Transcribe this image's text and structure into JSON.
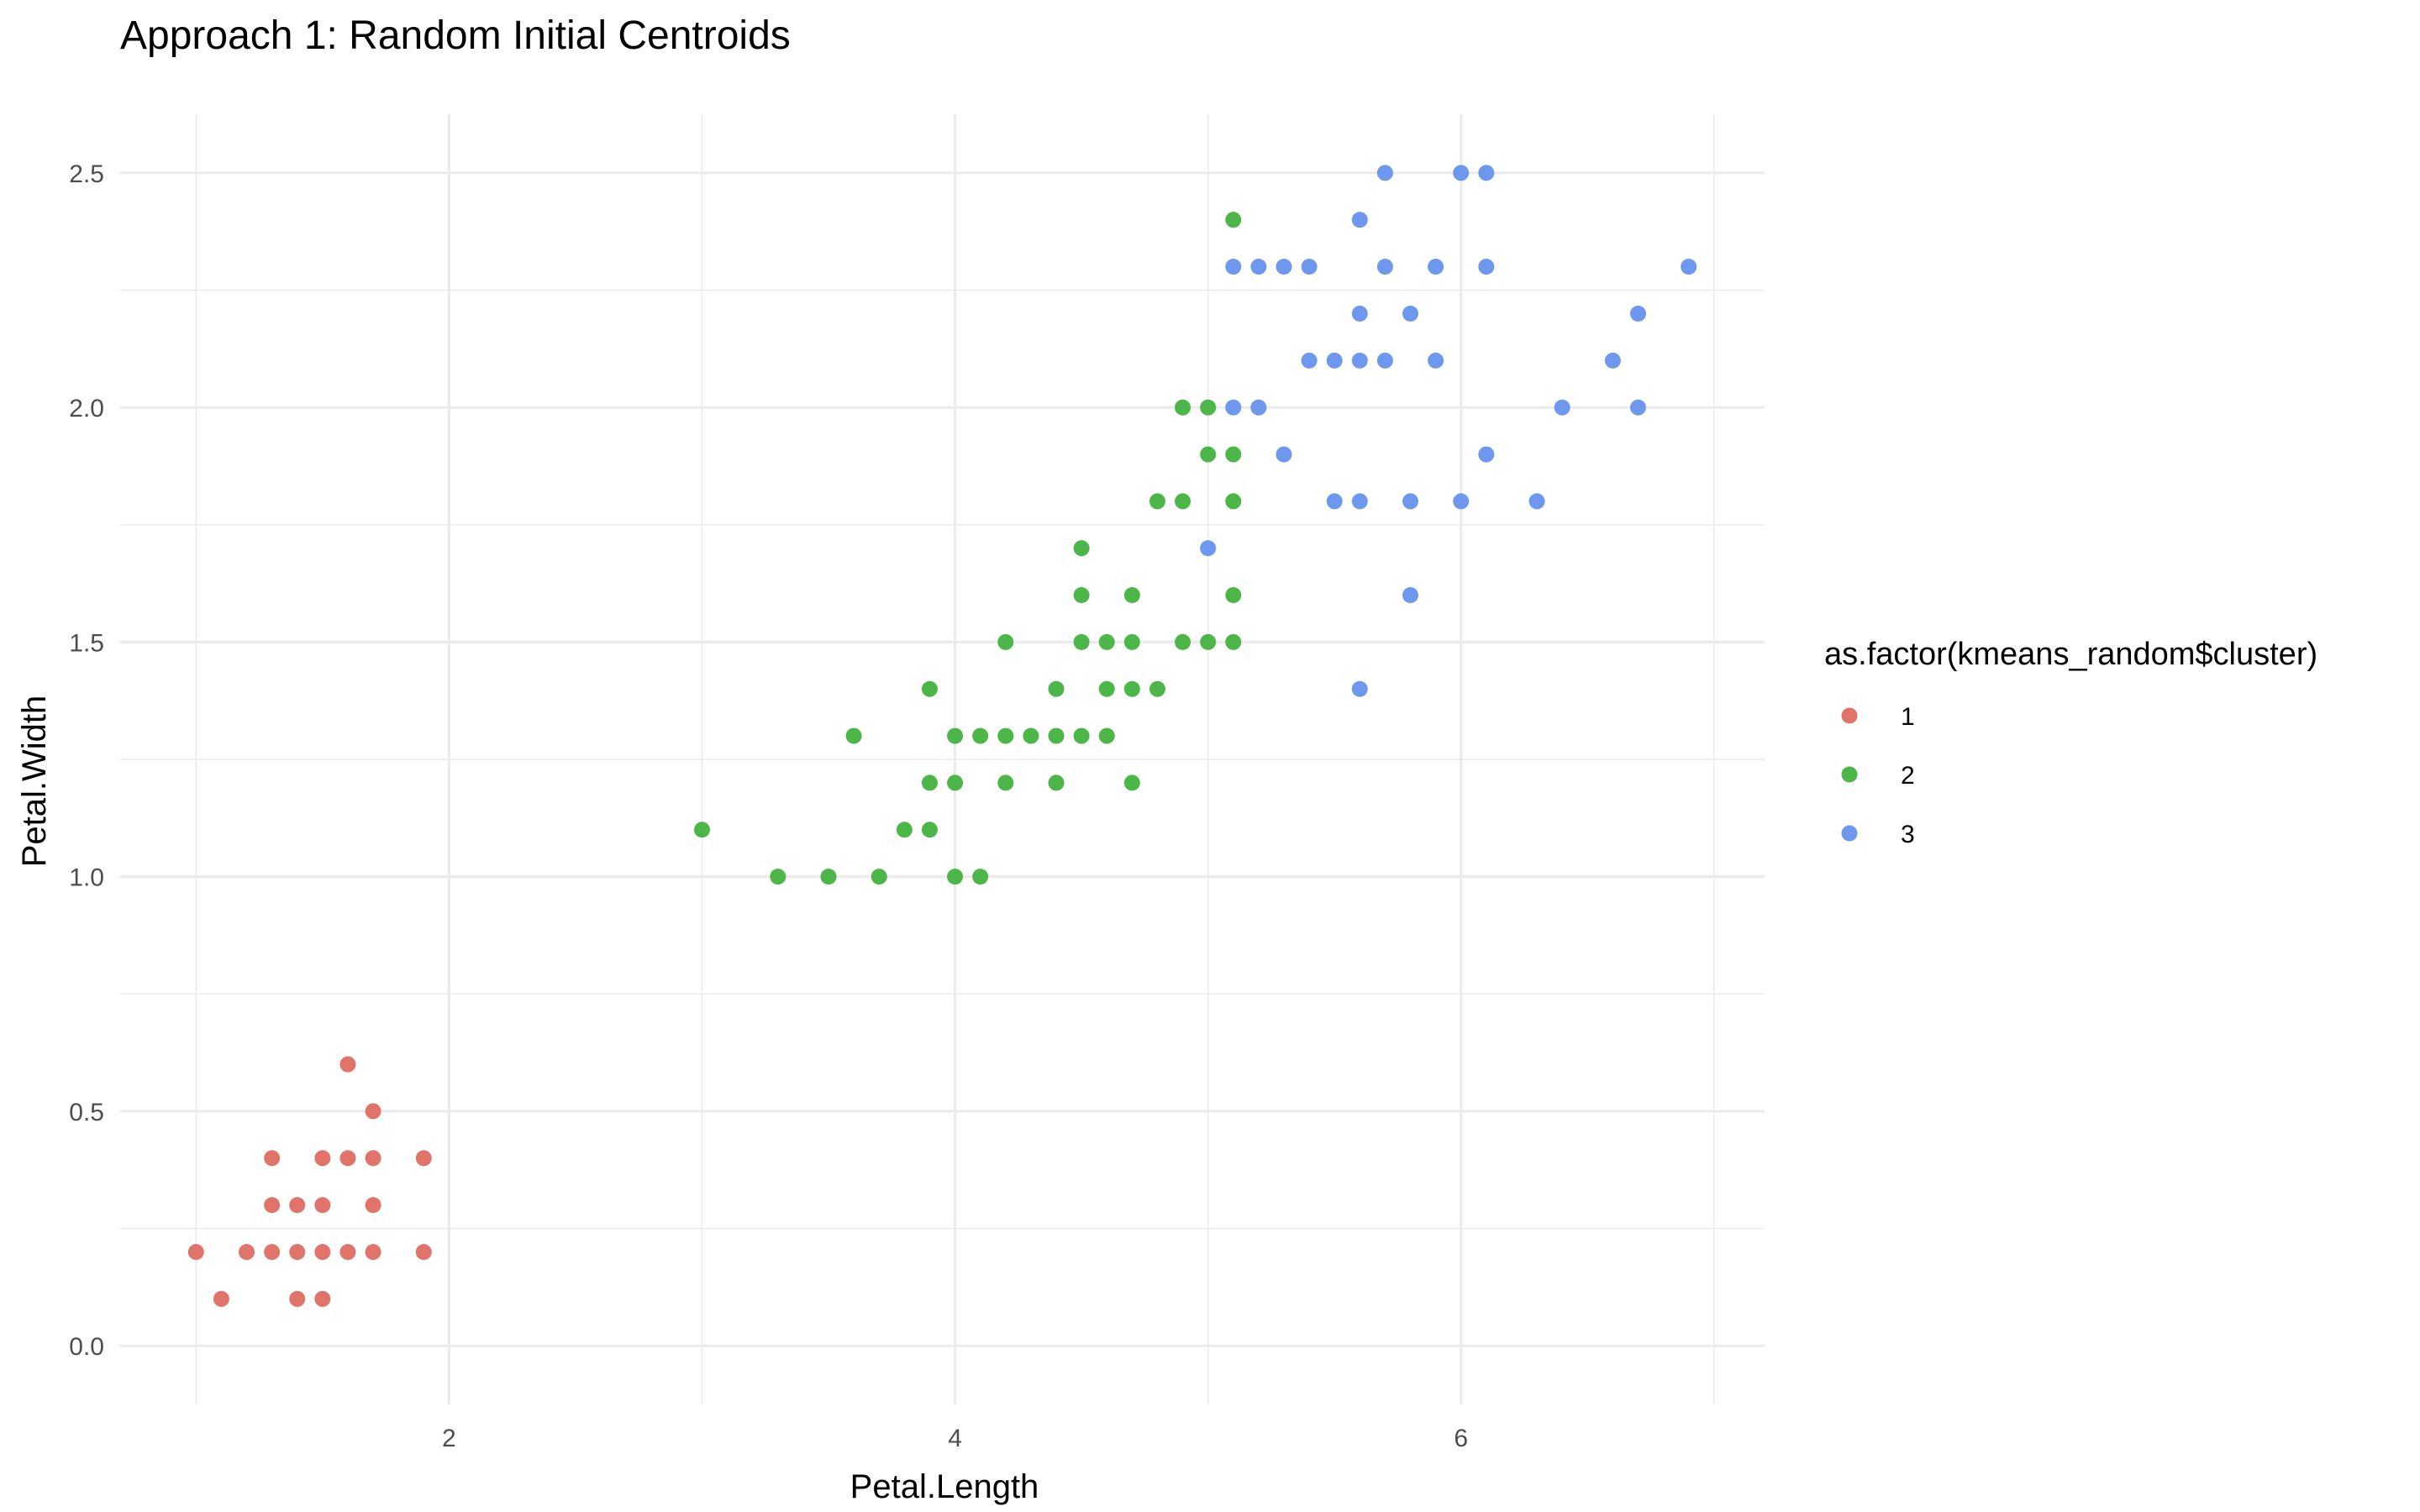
{
  "chart_data": {
    "type": "scatter",
    "title": "Approach 1: Random Initial Centroids",
    "xlabel": "Petal.Length",
    "ylabel": "Petal.Width",
    "xlim": [
      0.7,
      7.2
    ],
    "ylim": [
      0.0,
      2.5
    ],
    "x_ticks": [
      2,
      4,
      6
    ],
    "x_minor_ticks": [
      1,
      3,
      5,
      7
    ],
    "y_ticks": [
      0.0,
      0.5,
      1.0,
      1.5,
      2.0,
      2.5
    ],
    "y_minor_ticks": [
      0.25,
      0.75,
      1.25,
      1.75,
      2.25
    ],
    "grid": true,
    "legend": {
      "title": "as.factor(kmeans_random$cluster)",
      "position": "right"
    },
    "series": [
      {
        "name": "1",
        "color": "#E0746B",
        "points": [
          [
            1.0,
            0.2
          ],
          [
            1.1,
            0.1
          ],
          [
            1.2,
            0.2
          ],
          [
            1.3,
            0.2
          ],
          [
            1.3,
            0.3
          ],
          [
            1.3,
            0.4
          ],
          [
            1.4,
            0.1
          ],
          [
            1.4,
            0.2
          ],
          [
            1.4,
            0.3
          ],
          [
            1.5,
            0.1
          ],
          [
            1.5,
            0.2
          ],
          [
            1.5,
            0.3
          ],
          [
            1.5,
            0.4
          ],
          [
            1.6,
            0.2
          ],
          [
            1.6,
            0.4
          ],
          [
            1.6,
            0.6
          ],
          [
            1.7,
            0.2
          ],
          [
            1.7,
            0.3
          ],
          [
            1.7,
            0.4
          ],
          [
            1.7,
            0.5
          ],
          [
            1.9,
            0.2
          ],
          [
            1.9,
            0.4
          ]
        ]
      },
      {
        "name": "2",
        "color": "#4CB648",
        "points": [
          [
            3.0,
            1.1
          ],
          [
            3.3,
            1.0
          ],
          [
            3.5,
            1.0
          ],
          [
            3.6,
            1.3
          ],
          [
            3.7,
            1.0
          ],
          [
            3.8,
            1.1
          ],
          [
            3.9,
            1.1
          ],
          [
            3.9,
            1.2
          ],
          [
            3.9,
            1.4
          ],
          [
            4.0,
            1.0
          ],
          [
            4.0,
            1.2
          ],
          [
            4.0,
            1.3
          ],
          [
            4.1,
            1.0
          ],
          [
            4.1,
            1.3
          ],
          [
            4.2,
            1.2
          ],
          [
            4.2,
            1.3
          ],
          [
            4.2,
            1.5
          ],
          [
            4.3,
            1.3
          ],
          [
            4.4,
            1.2
          ],
          [
            4.4,
            1.3
          ],
          [
            4.4,
            1.4
          ],
          [
            4.5,
            1.3
          ],
          [
            4.5,
            1.5
          ],
          [
            4.5,
            1.6
          ],
          [
            4.5,
            1.7
          ],
          [
            4.6,
            1.3
          ],
          [
            4.6,
            1.4
          ],
          [
            4.6,
            1.5
          ],
          [
            4.7,
            1.2
          ],
          [
            4.7,
            1.4
          ],
          [
            4.7,
            1.5
          ],
          [
            4.7,
            1.6
          ],
          [
            4.8,
            1.4
          ],
          [
            4.8,
            1.8
          ],
          [
            4.9,
            1.5
          ],
          [
            4.9,
            1.8
          ],
          [
            4.9,
            2.0
          ],
          [
            5.0,
            1.5
          ],
          [
            5.0,
            1.9
          ],
          [
            5.0,
            2.0
          ],
          [
            5.1,
            1.5
          ],
          [
            5.1,
            1.6
          ],
          [
            5.1,
            1.8
          ],
          [
            5.1,
            1.9
          ],
          [
            5.1,
            2.4
          ]
        ]
      },
      {
        "name": "3",
        "color": "#6E97EE",
        "points": [
          [
            5.0,
            1.7
          ],
          [
            5.1,
            2.0
          ],
          [
            5.1,
            2.3
          ],
          [
            5.2,
            2.0
          ],
          [
            5.2,
            2.3
          ],
          [
            5.3,
            1.9
          ],
          [
            5.3,
            2.3
          ],
          [
            5.4,
            2.1
          ],
          [
            5.4,
            2.3
          ],
          [
            5.5,
            1.8
          ],
          [
            5.5,
            2.1
          ],
          [
            5.6,
            1.4
          ],
          [
            5.6,
            1.8
          ],
          [
            5.6,
            2.1
          ],
          [
            5.6,
            2.2
          ],
          [
            5.6,
            2.4
          ],
          [
            5.7,
            2.1
          ],
          [
            5.7,
            2.3
          ],
          [
            5.7,
            2.5
          ],
          [
            5.8,
            1.6
          ],
          [
            5.8,
            1.8
          ],
          [
            5.8,
            2.2
          ],
          [
            5.9,
            2.1
          ],
          [
            5.9,
            2.3
          ],
          [
            6.0,
            1.8
          ],
          [
            6.0,
            2.5
          ],
          [
            6.1,
            1.9
          ],
          [
            6.1,
            2.3
          ],
          [
            6.1,
            2.5
          ],
          [
            6.3,
            1.8
          ],
          [
            6.4,
            2.0
          ],
          [
            6.6,
            2.1
          ],
          [
            6.7,
            2.0
          ],
          [
            6.7,
            2.2
          ],
          [
            6.9,
            2.3
          ]
        ]
      }
    ]
  }
}
